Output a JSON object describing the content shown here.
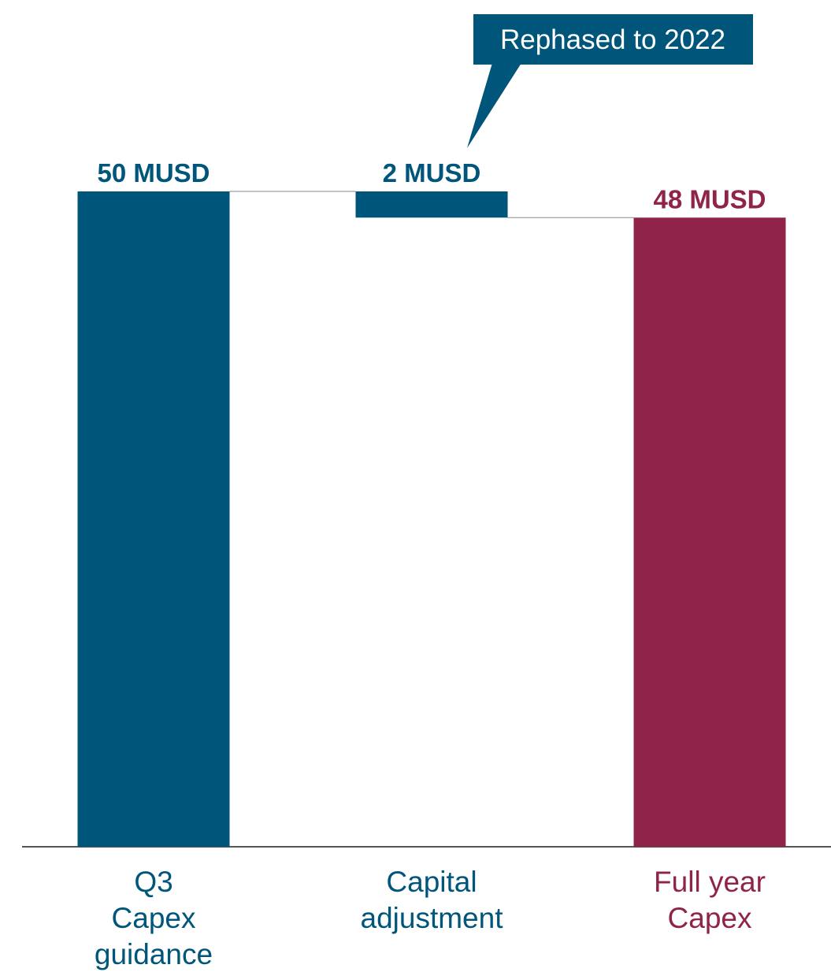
{
  "chart_data": {
    "type": "waterfall",
    "categories": [
      [
        "Q3",
        "Capex",
        "guidance"
      ],
      [
        "Capital",
        "adjustment"
      ],
      [
        "Full year",
        "Capex"
      ]
    ],
    "values": [
      50,
      2,
      48
    ],
    "measure": [
      "total",
      "decrease",
      "total"
    ],
    "value_labels": [
      "50 MUSD",
      "2 MUSD",
      "48 MUSD"
    ],
    "colors": [
      "#00567a",
      "#00567a",
      "#90234a"
    ],
    "ylim": [
      0,
      50
    ],
    "annotation": {
      "text": "Rephased to 2022",
      "target": 1
    }
  }
}
